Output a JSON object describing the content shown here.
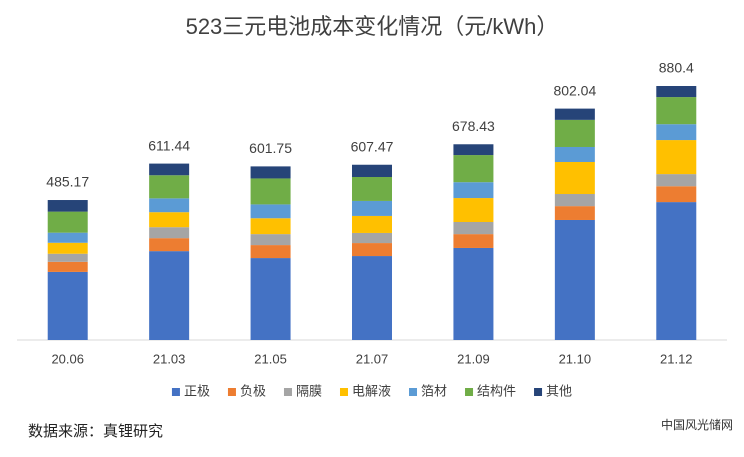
{
  "chart_data": {
    "type": "stacked_bar",
    "title": "523三元电池成本变化情况（元/kWh）",
    "categories": [
      "20.06",
      "21.03",
      "21.05",
      "21.07",
      "21.09",
      "21.10",
      "21.12"
    ],
    "totals": [
      485.17,
      611.44,
      601.75,
      607.47,
      678.43,
      802.04,
      880.4
    ],
    "series": [
      {
        "name": "正极",
        "color": "#4472c4",
        "values": [
          236,
          308,
          284,
          291,
          319,
          416,
          478
        ]
      },
      {
        "name": "负极",
        "color": "#ed7d31",
        "values": [
          35,
          45,
          45,
          45,
          48,
          48,
          55
        ]
      },
      {
        "name": "隔膜",
        "color": "#a5a5a5",
        "values": [
          28,
          38,
          38,
          35,
          42,
          42,
          42
        ]
      },
      {
        "name": "电解液",
        "color": "#ffc000",
        "values": [
          38,
          52,
          55,
          59,
          83,
          111,
          118
        ]
      },
      {
        "name": "箔材",
        "color": "#5b9bd5",
        "values": [
          35,
          48,
          48,
          52,
          55,
          52,
          55
        ]
      },
      {
        "name": "结构件",
        "color": "#70ad47",
        "values": [
          73,
          80,
          90,
          83,
          94,
          94,
          94
        ]
      },
      {
        "name": "其他",
        "color": "#264478",
        "values": [
          40.17,
          40.44,
          41.75,
          42.47,
          37.43,
          39.04,
          38.4
        ]
      }
    ],
    "legend": "bottom",
    "source": "数据来源：真锂研究",
    "watermark": "中国风光储网"
  }
}
